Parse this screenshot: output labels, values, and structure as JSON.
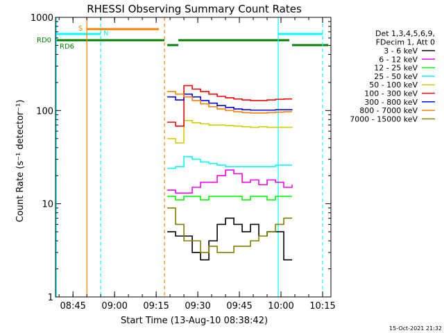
{
  "chart_data": {
    "type": "line",
    "title": "RHESSI Observing Summary Count Rates",
    "xlabel": "Start Time (13-Aug-10 08:38:42)",
    "ylabel": "Count Rate (s⁻¹ detector⁻¹)",
    "y_scale": "log",
    "xlim": [
      "08:38:42",
      "10:18:00"
    ],
    "ylim": [
      1,
      1000
    ],
    "x_tick_labels": [
      "08:45",
      "09:00",
      "09:15",
      "09:30",
      "09:45",
      "10:00",
      "10:15"
    ],
    "y_tick_labels": [
      "1",
      "10",
      "100",
      "1000"
    ],
    "legend": {
      "placement": "right",
      "header": [
        "Det 1,3,4,5,6,9,",
        "FDecim 1, Att 0"
      ]
    },
    "timestamp": "15-Oct-2021 21:32",
    "flags": {
      "S": {
        "label": "S",
        "segments": [
          [
            "08:50",
            "09:16"
          ]
        ],
        "color": "#ff8000"
      },
      "N": {
        "label": "N",
        "segments": [
          [
            "08:38:42",
            "08:55"
          ],
          [
            "09:59",
            "10:15"
          ]
        ],
        "color": "#00ffff"
      },
      "RD0": {
        "label": "RD0",
        "color": "#008000"
      },
      "RD6": {
        "label": "RD6",
        "color": "#008000",
        "segments": [
          [
            "08:38:42",
            "09:18"
          ],
          [
            "09:19",
            "09:23"
          ],
          [
            "09:23",
            "10:03"
          ],
          [
            "10:04",
            "10:17"
          ]
        ]
      }
    },
    "vertical_lines": [
      {
        "time": "08:39",
        "color": "#00ffff",
        "style": "solid"
      },
      {
        "time": "08:50",
        "color": "#ff8000",
        "style": "solid"
      },
      {
        "time": "08:55",
        "color": "#00ffff",
        "style": "dashed"
      },
      {
        "time": "09:18",
        "color": "#ff8000",
        "style": "dashed"
      },
      {
        "time": "09:59",
        "color": "#00ffff",
        "style": "solid"
      },
      {
        "time": "10:15",
        "color": "#00ffff",
        "style": "dashed"
      }
    ],
    "series": [
      {
        "name": "3 - 6 keV",
        "color": "#000000",
        "x": [
          "09:19",
          "09:22",
          "09:25",
          "09:28",
          "09:31",
          "09:34",
          "09:37",
          "09:40",
          "09:43",
          "09:46",
          "09:49",
          "09:52",
          "09:55",
          "09:58",
          "10:01",
          "10:04"
        ],
        "y": [
          5,
          4.5,
          4.5,
          3,
          2.5,
          4,
          6,
          7,
          6,
          5,
          6,
          4.5,
          5,
          5,
          2.5,
          2.5
        ]
      },
      {
        "name": "6 - 12 keV",
        "color": "#ff00ff",
        "x": [
          "09:19",
          "09:22",
          "09:25",
          "09:28",
          "09:31",
          "09:34",
          "09:37",
          "09:40",
          "09:43",
          "09:46",
          "09:49",
          "09:52",
          "09:55",
          "09:58",
          "10:01",
          "10:04"
        ],
        "y": [
          14,
          13,
          13,
          15,
          17,
          17,
          20,
          23,
          21,
          17,
          18,
          16,
          18,
          17,
          15,
          16
        ]
      },
      {
        "name": "12 - 25 keV",
        "color": "#00ff00",
        "x": [
          "09:19",
          "09:22",
          "09:25",
          "09:28",
          "09:31",
          "09:34",
          "09:37",
          "09:40",
          "09:43",
          "09:46",
          "09:49",
          "09:52",
          "09:55",
          "09:58",
          "10:01",
          "10:04"
        ],
        "y": [
          12,
          11,
          12,
          12,
          11,
          12,
          12,
          12,
          12,
          11,
          12,
          12,
          11,
          12,
          12,
          12
        ]
      },
      {
        "name": "25 - 50 keV",
        "color": "#00ffff",
        "x": [
          "09:19",
          "09:22",
          "09:25",
          "09:28",
          "09:31",
          "09:34",
          "09:37",
          "09:40",
          "09:43",
          "09:46",
          "09:49",
          "09:52",
          "09:55",
          "09:58",
          "10:01",
          "10:04"
        ],
        "y": [
          24,
          25,
          32,
          30,
          28,
          27,
          26,
          25,
          25,
          25,
          25,
          25,
          25,
          26,
          26,
          26
        ]
      },
      {
        "name": "50 - 100 keV",
        "color": "#d0d000",
        "x": [
          "09:19",
          "09:22",
          "09:25",
          "09:28",
          "09:31",
          "09:34",
          "09:37",
          "09:40",
          "09:43",
          "09:46",
          "09:49",
          "09:52",
          "09:55",
          "09:58",
          "10:01",
          "10:04"
        ],
        "y": [
          50,
          45,
          78,
          74,
          72,
          70,
          70,
          69,
          68,
          67,
          66,
          67,
          66,
          66,
          66,
          67
        ]
      },
      {
        "name": "100 - 300 keV",
        "color": "#ff0000",
        "x": [
          "09:19",
          "09:22",
          "09:25",
          "09:28",
          "09:31",
          "09:34",
          "09:37",
          "09:40",
          "09:43",
          "09:46",
          "09:49",
          "09:52",
          "09:55",
          "09:58",
          "10:01",
          "10:04"
        ],
        "y": [
          75,
          68,
          185,
          170,
          160,
          150,
          142,
          137,
          133,
          130,
          128,
          128,
          130,
          132,
          133,
          133
        ]
      },
      {
        "name": "300 - 800 keV",
        "color": "#0000ff",
        "x": [
          "09:19",
          "09:22",
          "09:25",
          "09:28",
          "09:31",
          "09:34",
          "09:37",
          "09:40",
          "09:43",
          "09:46",
          "09:49",
          "09:52",
          "09:55",
          "09:58",
          "10:01",
          "10:04"
        ],
        "y": [
          140,
          130,
          150,
          140,
          128,
          120,
          113,
          108,
          104,
          102,
          101,
          101,
          101,
          102,
          102,
          103
        ]
      },
      {
        "name": "800 - 7000 keV",
        "color": "#ff8000",
        "x": [
          "09:19",
          "09:22",
          "09:25",
          "09:28",
          "09:31",
          "09:34",
          "09:37",
          "09:40",
          "09:43",
          "09:46",
          "09:49",
          "09:52",
          "09:55",
          "09:58",
          "10:01",
          "10:04"
        ],
        "y": [
          160,
          150,
          140,
          128,
          118,
          110,
          104,
          100,
          97,
          95,
          94,
          94,
          95,
          96,
          97,
          97
        ]
      },
      {
        "name": "7000 - 15000 keV",
        "color": "#808000",
        "x": [
          "09:19",
          "09:22",
          "09:25",
          "09:28",
          "09:31",
          "09:34",
          "09:37",
          "09:40",
          "09:43",
          "09:46",
          "09:49",
          "09:52",
          "09:55",
          "09:58",
          "10:01",
          "10:04"
        ],
        "y": [
          9,
          6,
          4,
          4,
          3,
          3.5,
          3,
          3,
          3.5,
          3.5,
          4,
          4.5,
          5,
          6,
          7,
          7
        ]
      }
    ]
  }
}
